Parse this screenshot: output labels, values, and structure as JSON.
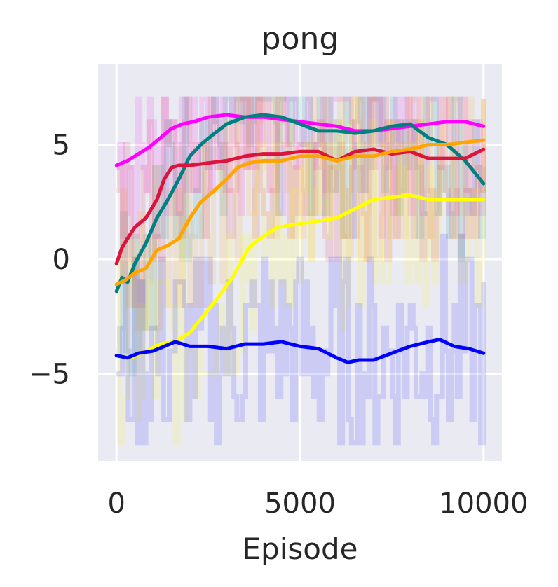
{
  "chart_data": {
    "type": "line",
    "title": "pong",
    "xlabel": "Episode",
    "ylabel": "",
    "xlim": [
      -500,
      10500
    ],
    "ylim": [
      -8.8,
      8.5
    ],
    "xticks": [
      0,
      5000,
      10000
    ],
    "yticks": [
      5,
      0,
      -5
    ],
    "ytick_labels": [
      "5",
      "0",
      "−5"
    ],
    "xtick_labels": [
      "0",
      "5000",
      "10000"
    ],
    "grid": true,
    "background": "#eaeaf2",
    "series": [
      {
        "color": "#ff00ff",
        "x": [
          0,
          300,
          600,
          900,
          1200,
          1500,
          1800,
          2100,
          2500,
          3000,
          3500,
          4000,
          4500,
          5000,
          5500,
          6000,
          6500,
          7000,
          7500,
          8000,
          8500,
          9000,
          9500,
          10000
        ],
        "y": [
          4.1,
          4.3,
          4.6,
          4.9,
          5.3,
          5.7,
          5.9,
          6.0,
          6.2,
          6.3,
          6.2,
          6.2,
          6.1,
          6.0,
          5.9,
          5.8,
          5.6,
          5.6,
          5.7,
          5.8,
          5.9,
          6.0,
          6.0,
          5.8
        ]
      },
      {
        "color": "#008080",
        "x": [
          0,
          150,
          300,
          500,
          800,
          1100,
          1400,
          1700,
          2000,
          2300,
          2600,
          3000,
          3500,
          4000,
          4500,
          5000,
          5500,
          6000,
          6500,
          7000,
          7500,
          8000,
          8500,
          9000,
          9500,
          10000
        ],
        "y": [
          -1.4,
          -0.8,
          -1.0,
          -0.2,
          0.7,
          1.8,
          2.6,
          3.5,
          4.5,
          5.0,
          5.4,
          5.9,
          6.2,
          6.3,
          6.2,
          5.9,
          5.6,
          5.6,
          5.5,
          5.6,
          5.8,
          5.9,
          5.3,
          5.0,
          4.3,
          3.3
        ]
      },
      {
        "color": "#dc143c",
        "x": [
          0,
          150,
          300,
          500,
          800,
          1100,
          1300,
          1500,
          1700,
          2000,
          2500,
          3000,
          3500,
          4000,
          4500,
          5000,
          5500,
          6000,
          6500,
          7000,
          7500,
          8000,
          8500,
          9000,
          9500,
          10000
        ],
        "y": [
          -0.2,
          0.5,
          0.9,
          1.4,
          1.8,
          2.6,
          3.5,
          4.0,
          4.1,
          4.1,
          4.2,
          4.3,
          4.5,
          4.6,
          4.6,
          4.7,
          4.7,
          4.3,
          4.7,
          4.8,
          4.6,
          4.7,
          4.4,
          4.4,
          4.4,
          4.8
        ]
      },
      {
        "color": "#ffa500",
        "x": [
          0,
          250,
          500,
          800,
          1100,
          1400,
          1700,
          2000,
          2300,
          2600,
          3000,
          3300,
          3600,
          4000,
          4500,
          5000,
          5500,
          6000,
          6500,
          7000,
          7500,
          8000,
          8500,
          9000,
          9500,
          10000
        ],
        "y": [
          -1.1,
          -0.9,
          -0.6,
          -0.4,
          0.4,
          0.6,
          0.9,
          1.8,
          2.5,
          2.9,
          3.5,
          4.0,
          4.2,
          4.3,
          4.3,
          4.5,
          4.5,
          4.3,
          4.5,
          4.5,
          4.7,
          4.8,
          5.0,
          5.0,
          5.1,
          5.2
        ]
      },
      {
        "color": "#ffff00",
        "x": [
          0,
          400,
          800,
          1200,
          1600,
          2000,
          2400,
          2800,
          3200,
          3600,
          4000,
          4400,
          4800,
          5200,
          5600,
          6000,
          6500,
          7000,
          7500,
          8000,
          8500,
          9000,
          9500,
          10000
        ],
        "y": [
          -4.2,
          -4.3,
          -4.0,
          -3.7,
          -3.6,
          -3.2,
          -2.4,
          -1.6,
          -0.7,
          0.5,
          1.0,
          1.4,
          1.5,
          1.6,
          1.7,
          1.8,
          2.2,
          2.6,
          2.7,
          2.8,
          2.6,
          2.6,
          2.6,
          2.6
        ]
      },
      {
        "color": "#0000ff",
        "x": [
          0,
          300,
          600,
          1000,
          1300,
          1600,
          2000,
          2500,
          3000,
          3500,
          4000,
          4500,
          5000,
          5500,
          6000,
          6300,
          6600,
          7000,
          7500,
          8000,
          8500,
          8800,
          9200,
          9600,
          10000
        ],
        "y": [
          -4.2,
          -4.3,
          -4.1,
          -4.0,
          -3.8,
          -3.6,
          -3.8,
          -3.8,
          -3.9,
          -3.7,
          -3.7,
          -3.6,
          -3.8,
          -3.9,
          -4.3,
          -4.5,
          -4.4,
          -4.4,
          -4.1,
          -3.8,
          -3.6,
          -3.5,
          -3.8,
          -3.9,
          -4.1
        ]
      }
    ]
  }
}
